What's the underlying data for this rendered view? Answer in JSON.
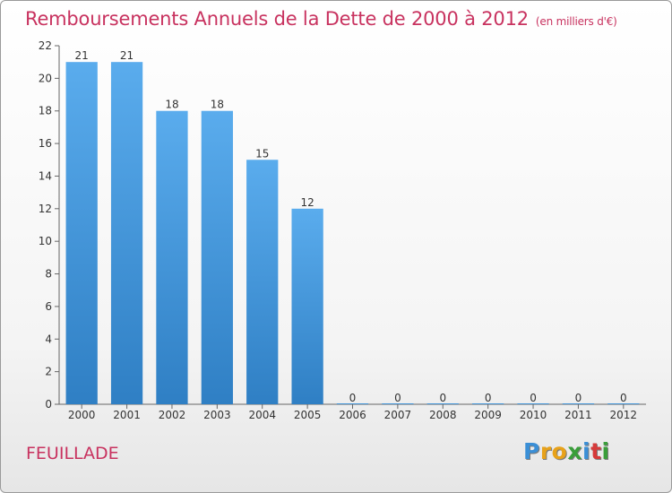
{
  "title": "Remboursements Annuels de la Dette de 2000 à 2012",
  "subtitle": "(en milliers d'€)",
  "commune": "FEUILLADE",
  "logo": {
    "letters": [
      "P",
      "r",
      "o",
      "x",
      "i",
      "t",
      "i"
    ],
    "colors": [
      "#3b8fd6",
      "#e8a21a",
      "#e8a21a",
      "#3a9e3a",
      "#3b8fd6",
      "#d63b3b",
      "#3a9e3a"
    ]
  },
  "colors": {
    "bar": "#4f9ee0",
    "title": "#c8325f"
  },
  "chart_data": {
    "type": "bar",
    "title": "Remboursements Annuels de la Dette de 2000 à 2012",
    "subtitle": "(en milliers d'€)",
    "categories": [
      "2000",
      "2001",
      "2002",
      "2003",
      "2004",
      "2005",
      "2006",
      "2007",
      "2008",
      "2009",
      "2010",
      "2011",
      "2012"
    ],
    "values": [
      21,
      21,
      18,
      18,
      15,
      12,
      0,
      0,
      0,
      0,
      0,
      0,
      0
    ],
    "ylim": [
      0,
      22
    ],
    "yticks": [
      0,
      2,
      4,
      6,
      8,
      10,
      12,
      14,
      16,
      18,
      20,
      22
    ],
    "grid": false,
    "legend": "none"
  }
}
